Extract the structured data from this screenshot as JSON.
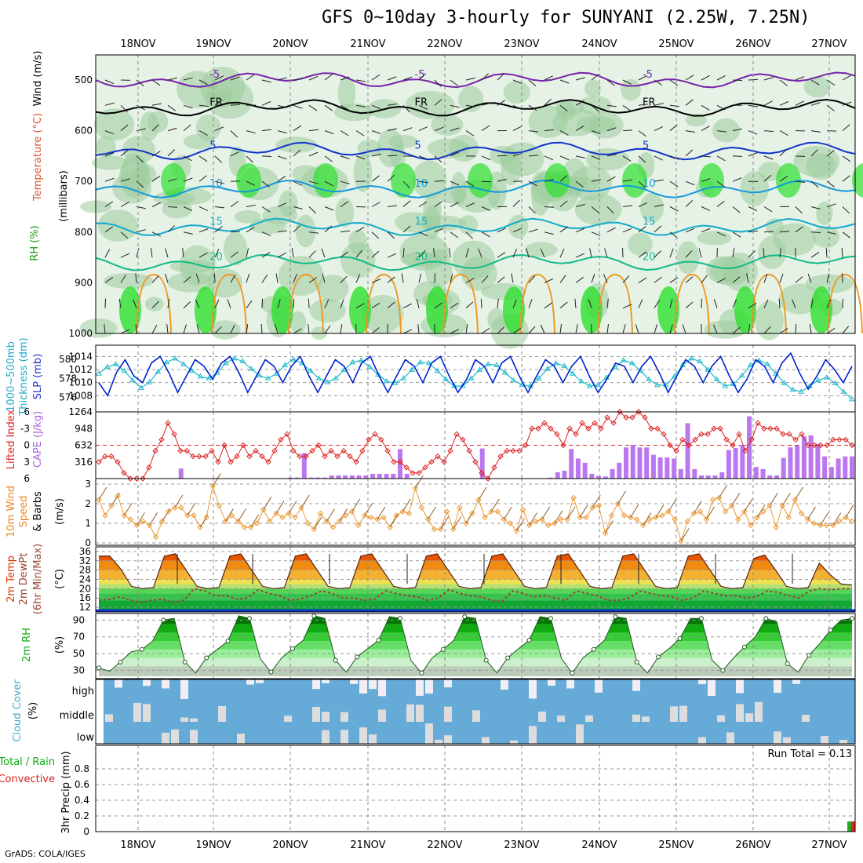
{
  "title": "GFS 0~10day 3-hourly for SUNYANI (2.25W, 7.25N)",
  "credit": "GrADS: COLA/IGES",
  "date_labels": [
    "18NOV",
    "19NOV",
    "20NOV",
    "21NOV",
    "22NOV",
    "23NOV",
    "24NOV",
    "25NOV",
    "26NOV",
    "27NOV"
  ],
  "panel_labels": {
    "profile": [
      "RH (%)",
      "Temperature (°C)",
      "Wind (m/s)",
      "(millibars)"
    ],
    "slp": [
      "1000~500mb",
      "Thickness (dm)",
      "SLP (mb)"
    ],
    "cape": [
      "Lifted Index",
      "CAPE (J/kg)"
    ],
    "wind10": [
      "10m Wind",
      "Speed",
      "& Barbs",
      "(m/s)"
    ],
    "temp2m": [
      "2m Temp",
      "2m DewPt",
      "(6hr Min/Max)",
      "(°C)"
    ],
    "rh2m": [
      "2m RH",
      "(%)"
    ],
    "cloud": [
      "Cloud Cover",
      "(%)"
    ],
    "precip": [
      "Total / Rain",
      "Convective",
      "3hr Precip (mm)"
    ]
  },
  "cloud_levels": [
    "high",
    "middle",
    "low"
  ],
  "run_total": "Run Total = 0.13",
  "colors": {
    "rh_dark": "#2ee02e",
    "rh_mid": "#9ccc9c",
    "rh_light": "#e6f2e6",
    "slp": "#0022cc",
    "thickness": "#22bbcc",
    "cape": "#bb77ee",
    "lifted": "#dd2222",
    "wind": "#ee9933",
    "temp": "#dd3300",
    "dewpt": "#994433",
    "rh2m": "#11aa11",
    "cloud": "#66aad8",
    "cloud_fill": "#dddddd"
  },
  "chart_data": [
    {
      "type": "heatmap",
      "name": "vertical profile",
      "y_ticks": [
        500,
        600,
        700,
        800,
        900,
        1000
      ],
      "isotherms": [
        {
          "label": "-5",
          "pressure": 500
        },
        {
          "label": "FR",
          "pressure": 555
        },
        {
          "label": "5",
          "pressure": 640
        },
        {
          "label": "10",
          "pressure": 715
        },
        {
          "label": "15",
          "pressure": 790
        },
        {
          "label": "20",
          "pressure": 860
        }
      ]
    },
    {
      "type": "line",
      "name": "SLP / thickness",
      "y_ticks_left": [
        576,
        578,
        580
      ],
      "y_ticks_right": [
        1008,
        1010,
        1012,
        1014
      ],
      "series": [
        {
          "name": "SLP (mb)",
          "values": [
            1010,
            1008,
            1011.5,
            1013.5,
            1011,
            1010,
            1013,
            1014,
            1011.5,
            1008.5,
            1011,
            1013.5,
            1012.5,
            1010.5,
            1013,
            1014,
            1011.5,
            1008.5,
            1011,
            1013.5,
            1012.5,
            1010,
            1012.5,
            1014,
            1011,
            1008.5,
            1011,
            1013.5,
            1012.5,
            1010,
            1013,
            1014,
            1011,
            1008.5,
            1011,
            1013.5,
            1012.5,
            1010,
            1013,
            1014,
            1011,
            1008.5,
            1010.5,
            1013.5,
            1012.5,
            1010,
            1013,
            1014,
            1011,
            1008.5,
            1011,
            1013.5,
            1012.5,
            1010,
            1012.5,
            1014,
            1011,
            1008.5,
            1010.5,
            1013,
            1012.5,
            1010,
            1012.5,
            1014,
            1011.5,
            1008.5,
            1011,
            1013.5,
            1012.5,
            1010,
            1012.5,
            1014,
            1011,
            1008.5,
            1010.5,
            1013.5,
            1012.5,
            1010,
            1013,
            1014.5,
            1011.5,
            1009,
            1011,
            1013.5,
            1012,
            1010,
            1012.5
          ]
        },
        {
          "name": "Thickness (dm)",
          "values": [
            578.5,
            579.2,
            579.5,
            578.8,
            577.8,
            577,
            577.6,
            578.7,
            579.7,
            580.1,
            579.5,
            578.8,
            578.2,
            578,
            578.6,
            579.6,
            580.1,
            579.8,
            579,
            578.3,
            578,
            578.5,
            579.4,
            580,
            579.6,
            578.8,
            578,
            577.6,
            578,
            578.9,
            579.7,
            579.9,
            579.2,
            578.4,
            577.7,
            577.5,
            578,
            578.9,
            579.7,
            579.6,
            578.8,
            577.9,
            577.2,
            577.2,
            578,
            578.9,
            579.5,
            579.4,
            578.6,
            577.8,
            577.3,
            577.2,
            578,
            579,
            579.6,
            579.3,
            578.5,
            577.7,
            577.2,
            577.3,
            578.1,
            579.2,
            579.9,
            579.6,
            578.8,
            577.9,
            577.3,
            577.3,
            578.2,
            579.4,
            580.1,
            579.8,
            578.9,
            577.9,
            577.2,
            577.4,
            578.3,
            579.4,
            579.9,
            579.5,
            578.5,
            577.5,
            576.8,
            576.6,
            577.2,
            577.8,
            578.1,
            577.5,
            576.6,
            575.8
          ]
        }
      ]
    },
    {
      "type": "bar",
      "name": "CAPE / Lifted Index",
      "y_ticks_cape": [
        316,
        632,
        948,
        1264
      ],
      "y_ticks_li": [
        -6,
        -3,
        0,
        3,
        6
      ],
      "series": [
        {
          "name": "CAPE (J/kg)",
          "values": [
            0,
            0,
            0,
            0,
            0,
            0,
            0,
            0,
            0,
            0,
            0,
            0,
            190,
            0,
            0,
            0,
            0,
            0,
            0,
            0,
            0,
            0,
            0,
            0,
            0,
            0,
            0,
            0,
            20,
            20,
            480,
            20,
            20,
            20,
            60,
            60,
            60,
            60,
            60,
            60,
            90,
            90,
            90,
            90,
            560,
            90,
            0,
            0,
            0,
            0,
            0,
            0,
            0,
            0,
            0,
            0,
            570,
            0,
            0,
            0,
            0,
            0,
            0,
            0,
            0,
            0,
            20,
            120,
            150,
            560,
            380,
            300,
            90,
            50,
            40,
            180,
            300,
            590,
            640,
            590,
            590,
            450,
            400,
            400,
            380,
            180,
            1050,
            180,
            60,
            60,
            60,
            120,
            540,
            580,
            640,
            1180,
            220,
            180,
            60,
            60,
            390,
            590,
            630,
            800,
            820,
            660,
            420,
            220,
            380,
            420,
            420
          ]
        },
        {
          "name": "Lifted Index",
          "values": [
            3,
            2,
            2,
            3,
            5,
            6,
            6,
            6,
            4,
            1,
            -1,
            -4,
            -2,
            1,
            1,
            2,
            2,
            2,
            1,
            3,
            0,
            3,
            2,
            0,
            2,
            1,
            2,
            3,
            1,
            -1,
            -2,
            1,
            2,
            2,
            1,
            0,
            2,
            1,
            2,
            1,
            2,
            3,
            1,
            -1,
            -2,
            -1,
            1,
            3,
            3,
            4,
            5,
            5,
            4,
            3,
            2,
            3,
            1,
            -2,
            -1,
            1,
            3,
            5,
            6,
            4,
            2,
            1,
            1,
            1,
            0,
            -3,
            -3,
            -4,
            -3,
            -2,
            0,
            -3,
            -2,
            -4,
            -3,
            -4,
            -3,
            -5,
            -4,
            -6,
            -5,
            -5,
            -6,
            -5,
            -3,
            -3,
            -2,
            0,
            1,
            -1,
            0,
            -1,
            -2,
            -2,
            -3,
            -3,
            -1,
            0,
            -2,
            1,
            -1,
            -4,
            -3,
            -3,
            -3,
            -2,
            -2,
            -1,
            -2,
            0,
            0,
            0,
            0,
            -1,
            -1,
            -1,
            0
          ]
        }
      ]
    },
    {
      "type": "line",
      "name": "10m wind speed",
      "y_ticks": [
        0,
        1,
        2,
        3
      ],
      "series": [
        {
          "name": "Speed",
          "values": [
            2.2,
            1.4,
            1.9,
            2.4,
            1.4,
            1.2,
            0.9,
            1.1,
            0.9,
            0.3,
            1.1,
            1.6,
            1.8,
            1.8,
            1.4,
            1.4,
            0.8,
            1.3,
            2.9,
            1.9,
            1.1,
            1.4,
            1.1,
            0.8,
            0.8,
            1.0,
            1.7,
            1.1,
            1.5,
            1.3,
            1.5,
            1.3,
            1.8,
            1.0,
            0.7,
            1.5,
            1.1,
            0.8,
            1.1,
            1.4,
            1.6,
            0.9,
            1.4,
            1.3,
            1.2,
            1.3,
            0.8,
            1.4,
            1.6,
            1.5,
            2.8,
            1.8,
            1.2,
            0.7,
            0.7,
            1.6,
            0.7,
            1.8,
            1.0,
            1.5,
            2.2,
            1.3,
            1.6,
            1.6,
            1.2,
            1.0,
            0.6,
            1.7,
            0.9,
            1.1,
            1.2,
            0.9,
            1.0,
            1.2,
            1.2,
            2.3,
            1.3,
            1.3,
            1.8,
            1.9,
            0.5,
            1.4,
            2.0,
            1.4,
            1.3,
            1.2,
            0.9,
            1.2,
            1.3,
            1.4,
            1.6,
            1.2,
            0.1,
            1.1,
            1.5,
            1.6,
            1.2,
            2.2,
            2.3,
            1.6,
            1.9,
            1.2,
            1.6,
            0.9,
            1.3,
            1.6,
            1.9,
            0.8,
            1.9,
            1.3,
            2.2,
            1.5,
            1.2,
            1.0,
            0.9,
            0.9,
            0.9,
            1.1,
            1.3,
            1.1
          ]
        }
      ]
    },
    {
      "type": "area",
      "name": "2m temp / dewpoint",
      "y_ticks": [
        12,
        16,
        20,
        24,
        28,
        32,
        36
      ],
      "series": [
        {
          "name": "2m Temp",
          "values": [
            34,
            34,
            28.5,
            21,
            20,
            20.5,
            34,
            35,
            28,
            21,
            20,
            20.5,
            34,
            35,
            28,
            21,
            20,
            20.5,
            34,
            35,
            28,
            21,
            20,
            20.5,
            34,
            35,
            28,
            21,
            20,
            20.5,
            34,
            35,
            28,
            21,
            20,
            20.5,
            34,
            35,
            28,
            21,
            20,
            20.5,
            34,
            35,
            28,
            21,
            20,
            20.5,
            34,
            35,
            28,
            21,
            20,
            20.5,
            34,
            35,
            28,
            21,
            20,
            20.5,
            33,
            34.5,
            28,
            21,
            20,
            20.5,
            31,
            26,
            22,
            21.5
          ]
        },
        {
          "name": "2m DewPt",
          "values": [
            15,
            15.5,
            16.5,
            15,
            14,
            15,
            15.5,
            14,
            15,
            20,
            19,
            17,
            17,
            15.5,
            16,
            19.5,
            18,
            17,
            15,
            15.5,
            17,
            19,
            18,
            16,
            16,
            15,
            15.5,
            19,
            18,
            17,
            16.5,
            15,
            16,
            19.5,
            18,
            17,
            16.5,
            15,
            14.5,
            19,
            18,
            16.5,
            17,
            16,
            15,
            19,
            18,
            17,
            15,
            15,
            16,
            19,
            18,
            17,
            16.5,
            15,
            16,
            19,
            18,
            17,
            17,
            16,
            16.5,
            19,
            18.5,
            17,
            16,
            19,
            20,
            19.5,
            20,
            20
          ]
        }
      ]
    },
    {
      "type": "area",
      "name": "2m RH",
      "y_ticks": [
        30,
        50,
        70,
        90
      ],
      "series": [
        {
          "name": "2m RH",
          "values": [
            33,
            29,
            40,
            52,
            55,
            65,
            90,
            92,
            40,
            27,
            45,
            55,
            65,
            95,
            92,
            44,
            28,
            45,
            56,
            66,
            95,
            92,
            42,
            28,
            46,
            56,
            66,
            94,
            92,
            42,
            27,
            45,
            55,
            66,
            94,
            92,
            42,
            27,
            45,
            56,
            66,
            94,
            92,
            44,
            27,
            45,
            55,
            66,
            94,
            92,
            40,
            27,
            46,
            56,
            68,
            92,
            92,
            42,
            30,
            45,
            58,
            70,
            92,
            88,
            38,
            28,
            48,
            62,
            78,
            90,
            92
          ]
        }
      ]
    },
    {
      "type": "bar",
      "name": "cloud cover",
      "categories": [
        "high",
        "middle",
        "low"
      ]
    },
    {
      "type": "bar",
      "name": "3hr precip",
      "y_ticks": [
        0,
        0.2,
        0.4,
        0.6,
        0.8
      ],
      "series": [
        {
          "name": "Total / Rain",
          "values": [
            0.13
          ]
        },
        {
          "name": "Convective",
          "values": [
            0.13
          ]
        }
      ]
    }
  ]
}
